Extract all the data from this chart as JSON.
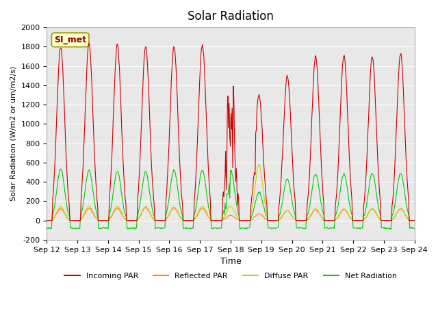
{
  "title": "Solar Radiation",
  "ylabel": "Solar Radiation (W/m2 or um/m2/s)",
  "xlabel": "Time",
  "ylim": [
    -200,
    2000
  ],
  "annotation": "SI_met",
  "background_color": "#e8e8e8",
  "legend": [
    {
      "label": "Incoming PAR",
      "color": "#cc0000"
    },
    {
      "label": "Reflected PAR",
      "color": "#ff8800"
    },
    {
      "label": "Diffuse PAR",
      "color": "#cccc00"
    },
    {
      "label": "Net Radiation",
      "color": "#00cc00"
    }
  ],
  "x_tick_labels": [
    "Sep 12",
    "Sep 13",
    "Sep 14",
    "Sep 15",
    "Sep 16",
    "Sep 17",
    "Sep 18",
    "Sep 19",
    "Sep 20",
    "Sep 21",
    "Sep 22",
    "Sep 23",
    "Sep 24"
  ],
  "y_ticks": [
    -200,
    0,
    200,
    400,
    600,
    800,
    1000,
    1200,
    1400,
    1600,
    1800,
    2000
  ]
}
